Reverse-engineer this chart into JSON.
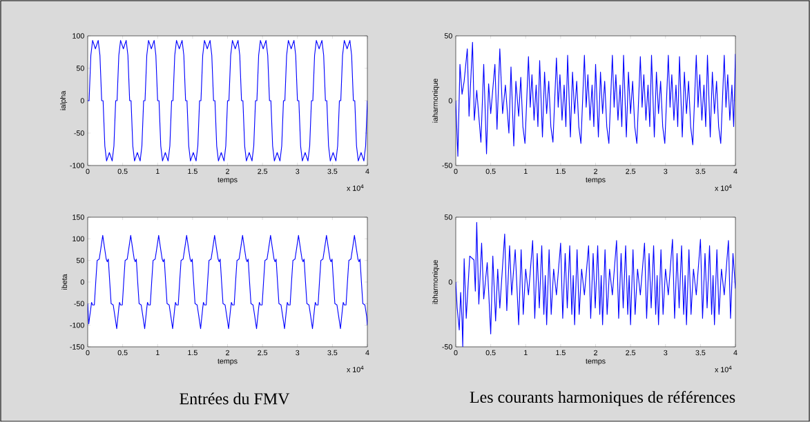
{
  "chart_data": [
    {
      "type": "line",
      "xlabel": "temps",
      "ylabel": "ialpha",
      "color": "#0000ff",
      "xlim": [
        0,
        4
      ],
      "ylim": [
        -100,
        100
      ],
      "xticks": [
        0,
        0.5,
        1,
        1.5,
        2,
        2.5,
        3,
        3.5,
        4
      ],
      "yticks": [
        -100,
        -50,
        0,
        50,
        100
      ],
      "annotations": [
        "x 10$^{4}$"
      ],
      "x": [
        0,
        0.02,
        0.045,
        0.07,
        0.11,
        0.15,
        0.175,
        0.2,
        0.22,
        0.245,
        0.27,
        0.31,
        0.35,
        0.375,
        0.4,
        0.42,
        0.445,
        0.47,
        0.51,
        0.55,
        0.575,
        0.6,
        0.62,
        0.645,
        0.67,
        0.71,
        0.75,
        0.775,
        0.8,
        0.82,
        0.845,
        0.87,
        0.91,
        0.95,
        0.975,
        1.0,
        1.02,
        1.045,
        1.07,
        1.11,
        1.15,
        1.175,
        1.2,
        1.22,
        1.245,
        1.27,
        1.31,
        1.35,
        1.375,
        1.4,
        1.42,
        1.445,
        1.47,
        1.51,
        1.55,
        1.575,
        1.6,
        1.62,
        1.645,
        1.67,
        1.71,
        1.75,
        1.775,
        1.8,
        1.82,
        1.845,
        1.87,
        1.91,
        1.95,
        1.975,
        2.0,
        2.02,
        2.045,
        2.07,
        2.11,
        2.15,
        2.175,
        2.2,
        2.22,
        2.245,
        2.27,
        2.31,
        2.35,
        2.375,
        2.4,
        2.42,
        2.445,
        2.47,
        2.51,
        2.55,
        2.575,
        2.6,
        2.62,
        2.645,
        2.67,
        2.71,
        2.75,
        2.775,
        2.8,
        2.82,
        2.845,
        2.87,
        2.91,
        2.95,
        2.975,
        3.0,
        3.02,
        3.045,
        3.07,
        3.11,
        3.15,
        3.175,
        3.2,
        3.22,
        3.245,
        3.27,
        3.31,
        3.35,
        3.375,
        3.4,
        3.42,
        3.445,
        3.47,
        3.51,
        3.55,
        3.575,
        3.6,
        3.62,
        3.645,
        3.67,
        3.71,
        3.75,
        3.775,
        3.8,
        3.82,
        3.845,
        3.87,
        3.91,
        3.95,
        3.975,
        4.0
      ],
      "values": [
        0,
        0,
        70,
        93,
        80,
        93,
        70,
        0,
        0,
        -70,
        -93,
        -80,
        -93,
        -70,
        0,
        0,
        70,
        93,
        80,
        93,
        70,
        0,
        0,
        -70,
        -93,
        -80,
        -93,
        -70,
        0,
        0,
        70,
        93,
        80,
        93,
        70,
        0,
        0,
        -70,
        -93,
        -80,
        -93,
        -70,
        0,
        0,
        70,
        93,
        80,
        93,
        70,
        0,
        0,
        -70,
        -93,
        -80,
        -93,
        -70,
        0,
        0,
        70,
        93,
        80,
        93,
        70,
        0,
        0,
        -70,
        -93,
        -80,
        -93,
        -70,
        0,
        0,
        70,
        93,
        80,
        93,
        70,
        0,
        0,
        -70,
        -93,
        -80,
        -93,
        -70,
        0,
        0,
        70,
        93,
        80,
        93,
        70,
        0,
        0,
        -70,
        -93,
        -80,
        -93,
        -70,
        0,
        0,
        70,
        93,
        80,
        93,
        70,
        0,
        0,
        -70,
        -93,
        -80,
        -93,
        -70,
        0,
        0,
        70,
        93,
        80,
        93,
        70,
        0,
        0,
        -70,
        -93,
        -80,
        -93,
        -70,
        0,
        0,
        70,
        93,
        80,
        93,
        70,
        0,
        0,
        -70,
        -93,
        -80,
        -93,
        -70,
        0
      ]
    },
    {
      "type": "line",
      "xlabel": "temps",
      "ylabel": "iaharmonique",
      "color": "#0000ff",
      "xlim": [
        0,
        4
      ],
      "ylim": [
        -50,
        50
      ],
      "xticks": [
        0,
        0.5,
        1,
        1.5,
        2,
        2.5,
        3,
        3.5,
        4
      ],
      "yticks": [
        -50,
        0,
        50
      ],
      "annotations": [
        "x 10$^{4}$"
      ],
      "x": [
        0,
        0.03,
        0.06,
        0.09,
        0.12,
        0.165,
        0.19,
        0.24,
        0.265,
        0.3,
        0.36,
        0.4,
        0.44,
        0.47,
        0.5,
        0.56,
        0.59,
        0.63,
        0.67,
        0.71,
        0.76,
        0.79,
        0.83,
        0.86,
        0.9,
        0.93,
        0.96,
        0.99,
        1.04,
        1.065,
        1.09,
        1.12,
        1.15,
        1.175,
        1.2,
        1.24,
        1.27,
        1.3,
        1.33,
        1.36,
        1.39,
        1.44,
        1.465,
        1.49,
        1.52,
        1.55,
        1.575,
        1.6,
        1.64,
        1.67,
        1.7,
        1.73,
        1.76,
        1.79,
        1.84,
        1.865,
        1.89,
        1.92,
        1.95,
        1.975,
        2.0,
        2.04,
        2.07,
        2.1,
        2.13,
        2.16,
        2.19,
        2.24,
        2.265,
        2.29,
        2.32,
        2.35,
        2.375,
        2.4,
        2.44,
        2.47,
        2.5,
        2.53,
        2.56,
        2.59,
        2.64,
        2.665,
        2.69,
        2.72,
        2.75,
        2.775,
        2.8,
        2.84,
        2.87,
        2.9,
        2.93,
        2.96,
        2.99,
        3.04,
        3.065,
        3.09,
        3.12,
        3.15,
        3.175,
        3.2,
        3.24,
        3.27,
        3.3,
        3.33,
        3.36,
        3.39,
        3.44,
        3.465,
        3.49,
        3.52,
        3.55,
        3.575,
        3.6,
        3.64,
        3.67,
        3.7,
        3.73,
        3.76,
        3.79,
        3.84,
        3.865,
        3.89,
        3.92,
        3.95,
        3.975,
        4.0
      ],
      "values": [
        0,
        -43,
        28,
        5,
        15,
        40,
        -12,
        45,
        -15,
        8,
        -32,
        28,
        -41,
        13,
        -10,
        28,
        -22,
        40,
        -10,
        12,
        -25,
        26,
        -35,
        15,
        -12,
        18,
        -20,
        -33,
        34,
        -5,
        20,
        -15,
        12,
        -20,
        31,
        -28,
        22,
        -10,
        15,
        -20,
        -32,
        33,
        -5,
        20,
        -15,
        12,
        -20,
        35,
        -28,
        22,
        -10,
        15,
        -20,
        -33,
        35,
        -5,
        20,
        -15,
        12,
        -20,
        28,
        -28,
        22,
        -10,
        15,
        -20,
        -33,
        35,
        -5,
        20,
        -15,
        12,
        -20,
        35,
        -28,
        22,
        -10,
        15,
        -20,
        -33,
        34,
        -5,
        20,
        -15,
        12,
        -20,
        35,
        -28,
        22,
        -10,
        15,
        -20,
        -33,
        35,
        -5,
        20,
        -15,
        12,
        -20,
        34,
        -28,
        22,
        -10,
        15,
        -20,
        -34,
        35,
        -5,
        20,
        -15,
        12,
        -20,
        35,
        -28,
        22,
        -10,
        15,
        -20,
        -33,
        35,
        -5,
        20,
        -15,
        12,
        -20,
        36
      ]
    },
    {
      "type": "line",
      "xlabel": "temps",
      "ylabel": "ibeta",
      "color": "#0000ff",
      "xlim": [
        0,
        4
      ],
      "ylim": [
        -150,
        150
      ],
      "xticks": [
        0,
        0.5,
        1,
        1.5,
        2,
        2.5,
        3,
        3.5,
        4
      ],
      "yticks": [
        -150,
        -100,
        -50,
        0,
        50,
        100,
        150
      ],
      "annotations": [
        "x 10$^{4}$",
        "Entrées du FMV"
      ],
      "x": [
        0,
        0.015,
        0.045,
        0.055,
        0.07,
        0.095,
        0.115,
        0.135,
        0.165,
        0.19,
        0.215,
        0.24,
        0.265,
        0.28,
        0.295,
        0.315,
        0.335,
        0.365,
        0.39,
        0.415,
        0.445,
        0.455,
        0.47,
        0.495,
        0.515,
        0.535,
        0.565,
        0.59,
        0.615,
        0.64,
        0.665,
        0.68,
        0.695,
        0.715,
        0.735,
        0.765,
        0.79,
        0.815,
        0.845,
        0.855,
        0.87,
        0.895,
        0.915,
        0.935,
        0.965,
        0.99,
        1.015,
        1.04,
        1.065,
        1.08,
        1.095,
        1.115,
        1.135,
        1.165,
        1.19,
        1.215,
        1.245,
        1.255,
        1.27,
        1.295,
        1.315,
        1.335,
        1.365,
        1.39,
        1.415,
        1.44,
        1.465,
        1.48,
        1.495,
        1.515,
        1.535,
        1.565,
        1.59,
        1.615,
        1.645,
        1.655,
        1.67,
        1.695,
        1.715,
        1.735,
        1.765,
        1.79,
        1.815,
        1.84,
        1.865,
        1.88,
        1.895,
        1.915,
        1.935,
        1.965,
        1.99,
        2.015,
        2.045,
        2.055,
        2.07,
        2.095,
        2.115,
        2.135,
        2.165,
        2.19,
        2.215,
        2.24,
        2.265,
        2.28,
        2.295,
        2.315,
        2.335,
        2.365,
        2.39,
        2.415,
        2.445,
        2.455,
        2.47,
        2.495,
        2.515,
        2.535,
        2.565,
        2.59,
        2.615,
        2.64,
        2.665,
        2.68,
        2.695,
        2.715,
        2.735,
        2.765,
        2.79,
        2.815,
        2.845,
        2.855,
        2.87,
        2.895,
        2.915,
        2.935,
        2.965,
        2.99,
        3.015,
        3.04,
        3.065,
        3.08,
        3.095,
        3.115,
        3.135,
        3.165,
        3.19,
        3.215,
        3.245,
        3.255,
        3.27,
        3.295,
        3.315,
        3.335,
        3.365,
        3.39,
        3.415,
        3.44,
        3.465,
        3.48,
        3.495,
        3.515,
        3.535,
        3.565,
        3.59,
        3.615,
        3.645,
        3.655,
        3.67,
        3.695,
        3.715,
        3.735,
        3.765,
        3.79,
        3.815,
        3.84,
        3.865,
        3.88,
        3.895,
        3.915,
        3.935,
        3.965,
        3.99,
        4.0
      ],
      "values": [
        -50,
        -97,
        -60,
        -47,
        -53,
        -53,
        0,
        50,
        53,
        80,
        108,
        80,
        53,
        47,
        53,
        0,
        -50,
        -53,
        -80,
        -108,
        -60,
        -47,
        -53,
        -53,
        0,
        50,
        53,
        80,
        108,
        80,
        53,
        47,
        53,
        0,
        -50,
        -53,
        -80,
        -108,
        -60,
        -47,
        -53,
        -53,
        0,
        50,
        53,
        80,
        108,
        80,
        53,
        47,
        53,
        0,
        -50,
        -53,
        -80,
        -108,
        -60,
        -47,
        -53,
        -53,
        0,
        50,
        53,
        80,
        108,
        80,
        53,
        47,
        53,
        0,
        -50,
        -53,
        -80,
        -108,
        -60,
        -47,
        -53,
        -53,
        0,
        50,
        53,
        80,
        108,
        80,
        53,
        47,
        53,
        0,
        -50,
        -53,
        -80,
        -108,
        -60,
        -47,
        -53,
        -53,
        0,
        50,
        53,
        80,
        108,
        80,
        53,
        47,
        53,
        0,
        -50,
        -53,
        -80,
        -108,
        -60,
        -47,
        -53,
        -53,
        0,
        50,
        53,
        80,
        108,
        80,
        53,
        47,
        53,
        0,
        -50,
        -53,
        -80,
        -108,
        -60,
        -47,
        -53,
        -53,
        0,
        50,
        53,
        80,
        108,
        80,
        53,
        47,
        53,
        0,
        -50,
        -53,
        -80,
        -108,
        -60,
        -47,
        -53,
        -53,
        0,
        50,
        53,
        80,
        108,
        80,
        53,
        47,
        53,
        0,
        -50,
        -53,
        -80,
        -108,
        -60,
        -47,
        -53,
        -53,
        0,
        50,
        53,
        80,
        108,
        80,
        53,
        47,
        53,
        0,
        -50,
        -53,
        -80,
        -100
      ]
    },
    {
      "type": "line",
      "xlabel": "temps",
      "ylabel": "ibharmonique",
      "color": "#0000ff",
      "xlim": [
        0,
        4
      ],
      "ylim": [
        -50,
        50
      ],
      "xticks": [
        0,
        0.5,
        1,
        1.5,
        2,
        2.5,
        3,
        3.5,
        4
      ],
      "yticks": [
        -50,
        0,
        50
      ],
      "annotations": [
        "x 10$^{4}$",
        "Les courants harmoniques de références"
      ],
      "x": [
        0,
        0.02,
        0.05,
        0.07,
        0.09,
        0.1,
        0.12,
        0.15,
        0.2,
        0.26,
        0.28,
        0.3,
        0.33,
        0.37,
        0.4,
        0.45,
        0.5,
        0.53,
        0.57,
        0.6,
        0.63,
        0.7,
        0.73,
        0.77,
        0.8,
        0.85,
        0.9,
        0.935,
        0.965,
        1.0,
        1.04,
        1.1,
        1.13,
        1.165,
        1.195,
        1.23,
        1.26,
        1.28,
        1.3,
        1.335,
        1.365,
        1.4,
        1.44,
        1.5,
        1.53,
        1.565,
        1.595,
        1.63,
        1.66,
        1.68,
        1.7,
        1.735,
        1.765,
        1.8,
        1.84,
        1.9,
        1.93,
        1.965,
        1.995,
        2.03,
        2.06,
        2.08,
        2.1,
        2.135,
        2.165,
        2.2,
        2.24,
        2.3,
        2.33,
        2.365,
        2.395,
        2.43,
        2.46,
        2.48,
        2.5,
        2.535,
        2.565,
        2.6,
        2.64,
        2.7,
        2.73,
        2.765,
        2.795,
        2.83,
        2.86,
        2.88,
        2.9,
        2.935,
        2.965,
        3.0,
        3.04,
        3.1,
        3.13,
        3.165,
        3.195,
        3.23,
        3.26,
        3.28,
        3.3,
        3.335,
        3.365,
        3.4,
        3.44,
        3.5,
        3.53,
        3.565,
        3.595,
        3.63,
        3.66,
        3.68,
        3.7,
        3.735,
        3.765,
        3.8,
        3.84,
        3.9,
        3.93,
        3.965,
        4.0
      ],
      "values": [
        0,
        -20,
        -37,
        -8,
        -30,
        -50,
        18,
        -28,
        20,
        17,
        -7,
        46,
        -17,
        30,
        -13,
        15,
        -40,
        20,
        -30,
        10,
        -20,
        37,
        -22,
        28,
        -10,
        25,
        -33,
        25,
        -25,
        10,
        -10,
        32,
        -28,
        22,
        -20,
        28,
        -25,
        5,
        -33,
        25,
        -25,
        10,
        -10,
        30,
        -28,
        22,
        -20,
        28,
        -25,
        5,
        -33,
        25,
        -25,
        10,
        -10,
        28,
        -28,
        22,
        -20,
        28,
        -25,
        5,
        -33,
        25,
        -25,
        10,
        -10,
        32,
        -28,
        22,
        -20,
        28,
        -25,
        5,
        -33,
        25,
        -25,
        10,
        -10,
        30,
        -28,
        22,
        -20,
        28,
        -25,
        5,
        -33,
        25,
        -25,
        10,
        -10,
        33,
        -28,
        22,
        -20,
        28,
        -25,
        5,
        -33,
        25,
        -25,
        10,
        -10,
        33,
        -28,
        22,
        -20,
        28,
        -25,
        5,
        -33,
        25,
        -25,
        10,
        -10,
        32,
        -28,
        22,
        -5
      ]
    }
  ]
}
